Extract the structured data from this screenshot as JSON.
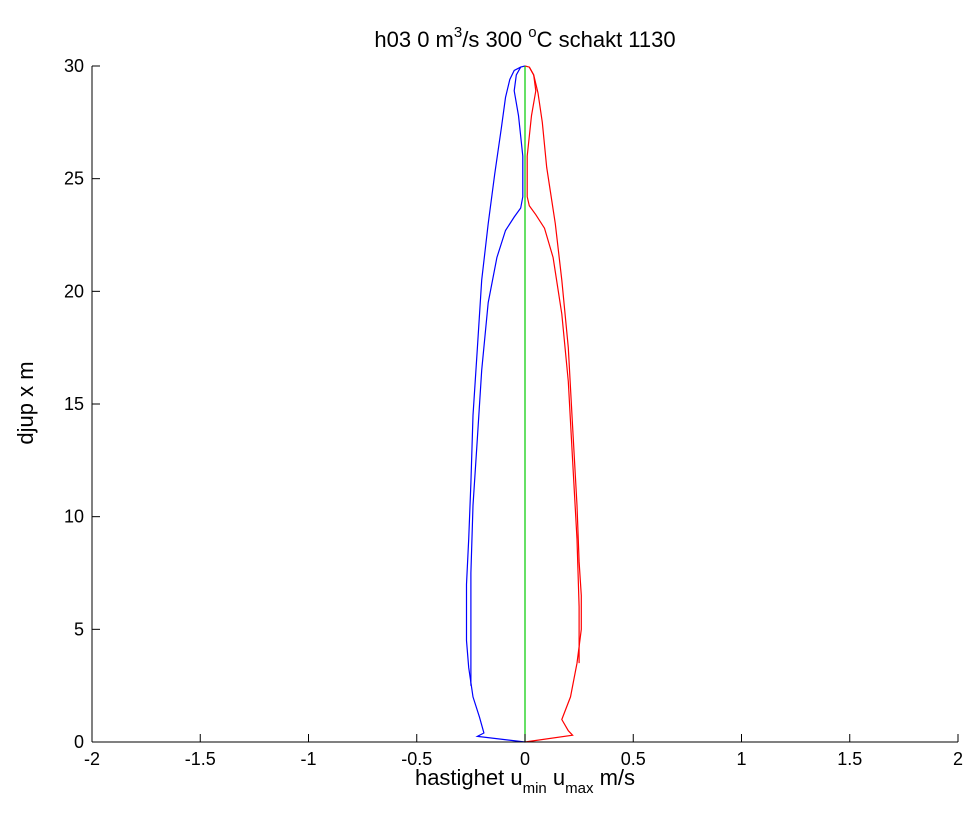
{
  "chart_data": {
    "type": "line",
    "title": {
      "prefix": "h03   0 m",
      "flow_exponent": "3",
      "flow_unit_tail": "/s   300 ",
      "temp_degree": "o",
      "suffix": "C   schakt 1130"
    },
    "xlabel": {
      "prefix": "hastighet u",
      "sub_min": "min",
      "mid": " u",
      "sub_max": "max",
      "suffix": " m/s"
    },
    "ylabel": "djup  x m",
    "xlim": [
      -2,
      2
    ],
    "ylim": [
      0,
      30
    ],
    "xticks": [
      -2,
      -1.5,
      -1,
      -0.5,
      0,
      0.5,
      1,
      1.5,
      2
    ],
    "xtick_labels": [
      "-2",
      "-1.5",
      "-1",
      "-0.5",
      "0",
      "0.5",
      "1",
      "1.5",
      "2"
    ],
    "yticks": [
      0,
      5,
      10,
      15,
      20,
      25,
      30
    ],
    "ytick_labels": [
      "0",
      "5",
      "10",
      "15",
      "20",
      "25",
      "30"
    ],
    "grid": false,
    "colors": {
      "min": "#0000ff",
      "max": "#ff0000",
      "center": "#00cc00",
      "axes": "#000000"
    },
    "series": [
      {
        "key": "umin_outer",
        "color": "#0000ff",
        "points": [
          [
            0,
            0
          ],
          [
            -0.22,
            0.25
          ],
          [
            -0.19,
            0.4
          ],
          [
            -0.21,
            1.1
          ],
          [
            -0.24,
            2.0
          ],
          [
            -0.26,
            3.3
          ],
          [
            -0.27,
            4.5
          ],
          [
            -0.27,
            7.0
          ],
          [
            -0.26,
            9.0
          ],
          [
            -0.25,
            11.5
          ],
          [
            -0.24,
            14.5
          ],
          [
            -0.22,
            17.5
          ],
          [
            -0.2,
            20.5
          ],
          [
            -0.17,
            23.0
          ],
          [
            -0.14,
            25.2
          ],
          [
            -0.11,
            27.2
          ],
          [
            -0.09,
            28.6
          ],
          [
            -0.07,
            29.4
          ],
          [
            -0.05,
            29.8
          ],
          [
            -0.02,
            29.95
          ],
          [
            0,
            30
          ]
        ]
      },
      {
        "key": "umin_inner",
        "color": "#0000ff",
        "points": [
          [
            -0.25,
            2.5
          ],
          [
            -0.25,
            4.5
          ],
          [
            -0.25,
            7.5
          ],
          [
            -0.24,
            10.5
          ],
          [
            -0.22,
            13.5
          ],
          [
            -0.2,
            16.5
          ],
          [
            -0.17,
            19.5
          ],
          [
            -0.13,
            21.5
          ],
          [
            -0.09,
            22.7
          ],
          [
            -0.05,
            23.3
          ],
          [
            -0.02,
            23.7
          ],
          [
            -0.01,
            24.2
          ],
          [
            -0.01,
            26.0
          ],
          [
            -0.03,
            27.8
          ],
          [
            -0.05,
            28.9
          ],
          [
            -0.04,
            29.6
          ],
          [
            -0.02,
            29.95
          ]
        ]
      },
      {
        "key": "umax_outer",
        "color": "#ff0000",
        "points": [
          [
            0,
            0
          ],
          [
            0.22,
            0.3
          ],
          [
            0.2,
            0.5
          ],
          [
            0.17,
            1.0
          ],
          [
            0.21,
            2.0
          ],
          [
            0.24,
            3.5
          ],
          [
            0.26,
            5.0
          ],
          [
            0.26,
            6.5
          ],
          [
            0.25,
            8.0
          ],
          [
            0.24,
            10.5
          ],
          [
            0.22,
            14.0
          ],
          [
            0.2,
            17.5
          ],
          [
            0.17,
            20.5
          ],
          [
            0.14,
            23.0
          ],
          [
            0.1,
            25.5
          ],
          [
            0.08,
            27.5
          ],
          [
            0.06,
            28.8
          ],
          [
            0.04,
            29.6
          ],
          [
            0.02,
            29.95
          ],
          [
            0,
            30
          ]
        ]
      },
      {
        "key": "umax_inner",
        "color": "#ff0000",
        "points": [
          [
            0.25,
            3.5
          ],
          [
            0.25,
            6.0
          ],
          [
            0.24,
            9.0
          ],
          [
            0.22,
            12.5
          ],
          [
            0.2,
            16.0
          ],
          [
            0.17,
            19.0
          ],
          [
            0.13,
            21.5
          ],
          [
            0.09,
            22.8
          ],
          [
            0.05,
            23.4
          ],
          [
            0.02,
            23.8
          ],
          [
            0.01,
            24.2
          ],
          [
            0.01,
            26.0
          ],
          [
            0.03,
            27.8
          ],
          [
            0.05,
            28.9
          ],
          [
            0.04,
            29.6
          ],
          [
            0.02,
            29.95
          ]
        ]
      },
      {
        "key": "center",
        "color": "#00cc00",
        "points": [
          [
            0,
            0
          ],
          [
            0,
            30
          ]
        ]
      }
    ]
  }
}
